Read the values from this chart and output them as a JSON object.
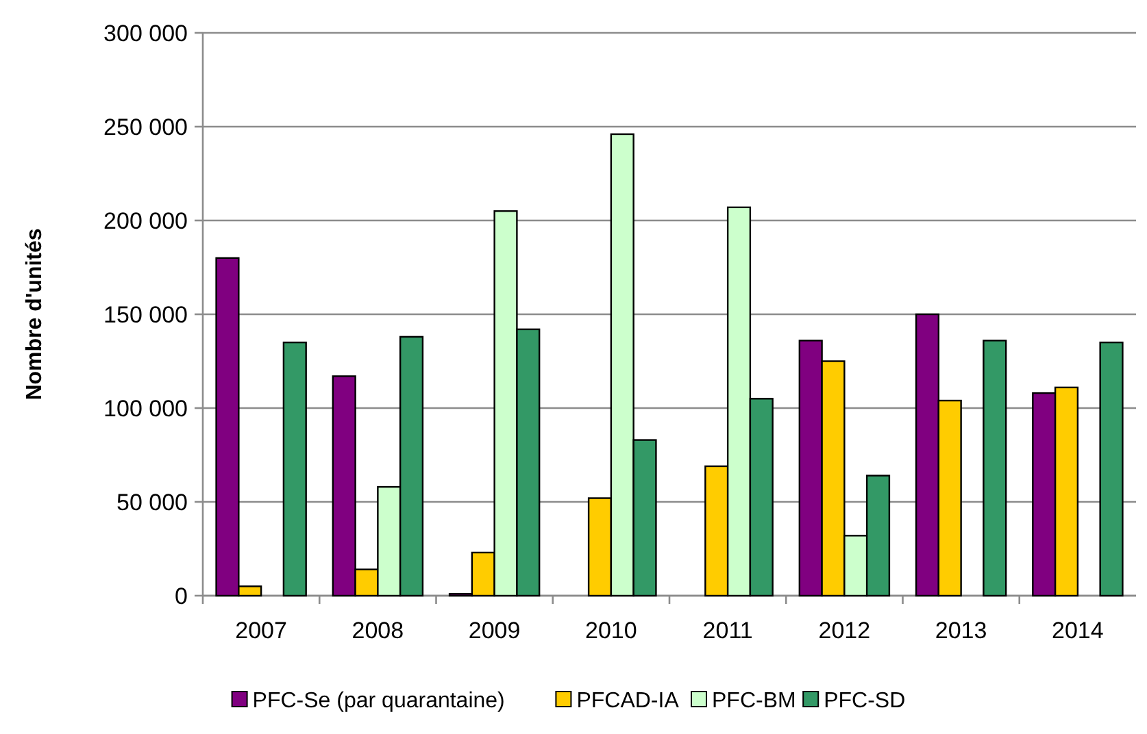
{
  "chart_data": {
    "type": "bar",
    "ylabel": "Nombre d'unités",
    "categories": [
      "2007",
      "2008",
      "2009",
      "2010",
      "2011",
      "2012",
      "2013",
      "2014"
    ],
    "series": [
      {
        "name": "PFC-Se (par quarantaine)",
        "color": "#800080",
        "values": [
          180000,
          117000,
          1000,
          null,
          null,
          136000,
          150000,
          108000
        ]
      },
      {
        "name": "PFCAD-IA",
        "color": "#ffcc00",
        "values": [
          5000,
          14000,
          23000,
          52000,
          69000,
          125000,
          104000,
          111000
        ]
      },
      {
        "name": "PFC-BM",
        "color": "#ccffcc",
        "values": [
          null,
          58000,
          205000,
          246000,
          207000,
          32000,
          null,
          null
        ]
      },
      {
        "name": "PFC-SD",
        "color": "#339966",
        "values": [
          135000,
          138000,
          142000,
          83000,
          105000,
          64000,
          136000,
          135000
        ]
      }
    ],
    "ylim": [
      0,
      300000
    ],
    "yticks": [
      {
        "value": 0,
        "label": "0"
      },
      {
        "value": 50000,
        "label": "50 000"
      },
      {
        "value": 100000,
        "label": "100 000"
      },
      {
        "value": 150000,
        "label": "150 000"
      },
      {
        "value": 200000,
        "label": "200 000"
      },
      {
        "value": 250000,
        "label": "250 000"
      },
      {
        "value": 300000,
        "label": "300 000"
      }
    ],
    "grid": "y",
    "legend": "bottom"
  }
}
